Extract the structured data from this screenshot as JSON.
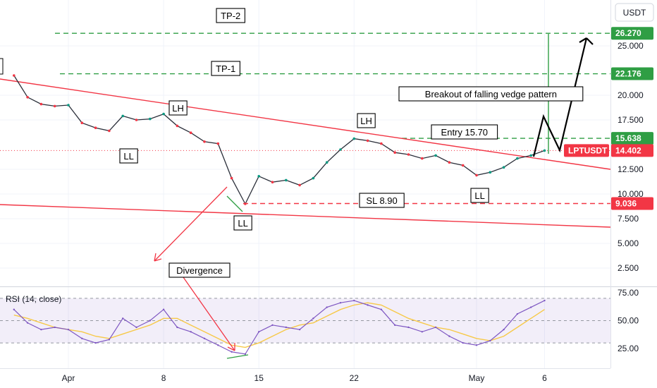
{
  "header": {
    "currency": "USDT"
  },
  "chart_data": {
    "type": "line",
    "symbol": "LPTUSDT",
    "price_axis": {
      "ticks": [
        "25.000",
        "20.000",
        "17.500",
        "12.500",
        "10.000",
        "7.500",
        "5.000",
        "2.500"
      ],
      "tick_values": [
        25,
        20,
        17.5,
        12.5,
        10,
        7.5,
        5,
        2.5
      ]
    },
    "rsi_axis": {
      "ticks": [
        "75.00",
        "50.00",
        "25.00"
      ],
      "tick_values": [
        75,
        50,
        25
      ]
    },
    "x_axis": {
      "ticks": [
        "Apr",
        "8",
        "15",
        "22",
        "May",
        "6"
      ],
      "tick_day_index": [
        0,
        7,
        14,
        21,
        30,
        35
      ]
    },
    "badges": [
      {
        "key": "tp2",
        "text": "26.270",
        "value": 26.27,
        "color": "#2f9e44"
      },
      {
        "key": "tp1",
        "text": "22.176",
        "value": 22.176,
        "color": "#2f9e44"
      },
      {
        "key": "entry",
        "text": "15.638",
        "value": 15.638,
        "color": "#2f9e44"
      },
      {
        "key": "symbol",
        "text": "LPTUSDT",
        "value": 14.402,
        "color": "#f23645"
      },
      {
        "key": "last",
        "text": "14.402",
        "value": 14.402,
        "color": "#f23645"
      },
      {
        "key": "sl",
        "text": "9.036",
        "value": 9.036,
        "color": "#f23645"
      }
    ],
    "levels": [
      {
        "name": "TP-2",
        "value": 26.27,
        "color": "#2f9e44"
      },
      {
        "name": "TP-1",
        "value": 22.176,
        "color": "#2f9e44"
      },
      {
        "name": "Entry",
        "value": 15.638,
        "color": "#2f9e44"
      },
      {
        "name": "SL",
        "value": 9.036,
        "color": "#f23645"
      }
    ],
    "annotations": {
      "tp2": "TP-2",
      "tp1": "TP-1",
      "breakout": "Breakout of falling vedge pattern",
      "entry": "Entry 15.70",
      "sl": "SL 8.90",
      "divergence": "Divergence",
      "lh1": "LH",
      "lh2": "LH",
      "ll1": "LL",
      "ll2": "LL",
      "ll3": "LL"
    },
    "rsi_label": "RSI (14, close)",
    "price_series": [
      [
        -4,
        22.0
      ],
      [
        -3,
        19.8
      ],
      [
        -2,
        19.1
      ],
      [
        -1,
        18.9
      ],
      [
        0,
        19.0
      ],
      [
        1,
        17.2
      ],
      [
        2,
        16.7
      ],
      [
        3,
        16.4
      ],
      [
        4,
        17.9
      ],
      [
        5,
        17.5
      ],
      [
        6,
        17.6
      ],
      [
        7,
        18.1
      ],
      [
        8,
        16.9
      ],
      [
        9,
        16.2
      ],
      [
        10,
        15.3
      ],
      [
        11,
        15.1
      ],
      [
        12,
        11.6
      ],
      [
        13,
        9.0
      ],
      [
        14,
        11.8
      ],
      [
        15,
        11.2
      ],
      [
        16,
        11.4
      ],
      [
        17,
        10.9
      ],
      [
        18,
        11.6
      ],
      [
        19,
        13.2
      ],
      [
        20,
        14.5
      ],
      [
        21,
        15.6
      ],
      [
        22,
        15.4
      ],
      [
        23,
        15.1
      ],
      [
        24,
        14.2
      ],
      [
        25,
        14.0
      ],
      [
        26,
        13.6
      ],
      [
        27,
        13.9
      ],
      [
        28,
        13.2
      ],
      [
        29,
        12.9
      ],
      [
        30,
        11.9
      ],
      [
        31,
        12.2
      ],
      [
        32,
        12.7
      ],
      [
        33,
        13.6
      ],
      [
        34,
        13.9
      ],
      [
        35,
        14.4
      ]
    ],
    "rsi_series": [
      [
        -4,
        60
      ],
      [
        -3,
        48
      ],
      [
        -2,
        42
      ],
      [
        -1,
        44
      ],
      [
        0,
        42
      ],
      [
        1,
        34
      ],
      [
        2,
        30
      ],
      [
        3,
        33
      ],
      [
        4,
        52
      ],
      [
        5,
        44
      ],
      [
        6,
        50
      ],
      [
        7,
        60
      ],
      [
        8,
        44
      ],
      [
        9,
        40
      ],
      [
        10,
        34
      ],
      [
        11,
        28
      ],
      [
        12,
        22
      ],
      [
        13,
        20
      ],
      [
        14,
        40
      ],
      [
        15,
        46
      ],
      [
        16,
        44
      ],
      [
        17,
        42
      ],
      [
        18,
        52
      ],
      [
        19,
        62
      ],
      [
        20,
        66
      ],
      [
        21,
        68
      ],
      [
        22,
        64
      ],
      [
        23,
        60
      ],
      [
        24,
        46
      ],
      [
        25,
        44
      ],
      [
        26,
        40
      ],
      [
        27,
        44
      ],
      [
        28,
        36
      ],
      [
        29,
        30
      ],
      [
        30,
        28
      ],
      [
        31,
        32
      ],
      [
        32,
        42
      ],
      [
        33,
        56
      ],
      [
        34,
        62
      ],
      [
        35,
        68
      ]
    ],
    "rsi_ma": [
      [
        -4,
        55
      ],
      [
        -3,
        52
      ],
      [
        -2,
        48
      ],
      [
        -1,
        44
      ],
      [
        0,
        42
      ],
      [
        1,
        40
      ],
      [
        2,
        36
      ],
      [
        3,
        34
      ],
      [
        4,
        38
      ],
      [
        5,
        42
      ],
      [
        6,
        46
      ],
      [
        7,
        52
      ],
      [
        8,
        52
      ],
      [
        9,
        46
      ],
      [
        10,
        40
      ],
      [
        11,
        34
      ],
      [
        12,
        28
      ],
      [
        13,
        26
      ],
      [
        14,
        30
      ],
      [
        15,
        36
      ],
      [
        16,
        42
      ],
      [
        17,
        46
      ],
      [
        18,
        48
      ],
      [
        19,
        54
      ],
      [
        20,
        60
      ],
      [
        21,
        64
      ],
      [
        22,
        66
      ],
      [
        23,
        64
      ],
      [
        24,
        58
      ],
      [
        25,
        52
      ],
      [
        26,
        48
      ],
      [
        27,
        44
      ],
      [
        28,
        42
      ],
      [
        29,
        38
      ],
      [
        30,
        34
      ],
      [
        31,
        32
      ],
      [
        32,
        36
      ],
      [
        33,
        44
      ],
      [
        34,
        52
      ],
      [
        35,
        60
      ]
    ]
  }
}
